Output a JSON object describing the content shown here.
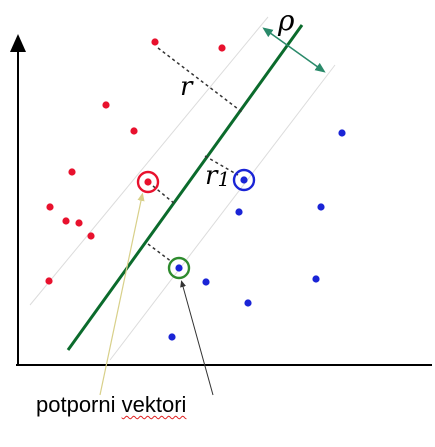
{
  "labels": {
    "rho": "ρ",
    "r": "r",
    "r1": "r1",
    "caption_word1": "potporni",
    "caption_word2": "vektori"
  },
  "classes": {
    "red": {
      "color": "#e8112d",
      "points": [
        [
          155,
          42
        ],
        [
          222,
          48
        ],
        [
          106,
          105
        ],
        [
          134,
          131
        ],
        [
          72,
          172
        ],
        [
          50,
          207
        ],
        [
          66,
          221
        ],
        [
          79,
          223
        ],
        [
          91,
          236
        ],
        [
          49,
          281
        ]
      ],
      "support": [
        [
          148,
          182
        ]
      ]
    },
    "blue": {
      "color": "#1a24d6",
      "points": [
        [
          342,
          133
        ],
        [
          239,
          212
        ],
        [
          321,
          207
        ],
        [
          206,
          282
        ],
        [
          316,
          279
        ],
        [
          248,
          303
        ],
        [
          172,
          337
        ]
      ],
      "support": [
        [
          244,
          180
        ]
      ]
    },
    "green_support": {
      "color": "#2e8b2e",
      "dot": "#1a24d6",
      "points": [
        [
          179,
          268
        ]
      ]
    }
  },
  "colors": {
    "separator": "#0b6b2c",
    "margin_lines": "#dcdcdc",
    "axis": "#000000",
    "dashed": "#333333",
    "rho_arrow": "#2a8a6a",
    "yellow_arrow": "#d8d08a",
    "black_arrow": "#333333"
  }
}
